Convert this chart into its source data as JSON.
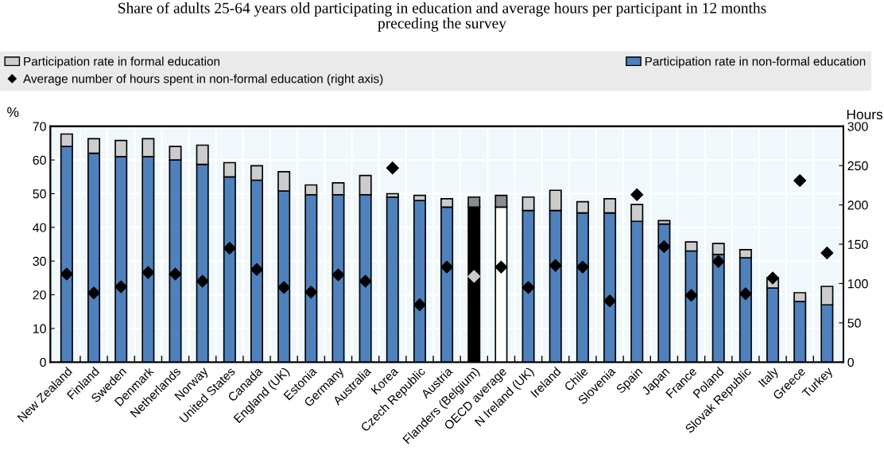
{
  "chart_data": {
    "type": "bar",
    "title": "Share of adults 25-64 years old participating in education and average hours per participant in 12 months\npreceding the survey",
    "ylabel": "%",
    "y2label": "Hours",
    "categories": [
      "New Zealand",
      "Finland",
      "Sweden",
      "Denmark",
      "Netherlands",
      "Norway",
      "United States",
      "Canada",
      "England (UK)",
      "Estonia",
      "Germany",
      "Australia",
      "Korea",
      "Czech Republic",
      "Austria",
      "Flanders (Belgium)",
      "OECD average",
      "N Ireland (UK)",
      "Ireland",
      "Chile",
      "Slovenia",
      "Spain",
      "Japan",
      "France",
      "Poland",
      "Slovak Republic",
      "Italy",
      "Greece",
      "Turkey"
    ],
    "stacked": true,
    "series": [
      {
        "name": "Participation rate in non-formal education",
        "color": "#4f81bd",
        "colors": [
          "#4f81bd",
          "#4f81bd",
          "#4f81bd",
          "#4f81bd",
          "#4f81bd",
          "#4f81bd",
          "#4f81bd",
          "#4f81bd",
          "#4f81bd",
          "#4f81bd",
          "#4f81bd",
          "#4f81bd",
          "#4f81bd",
          "#4f81bd",
          "#4f81bd",
          "#000000",
          "#ffffff",
          "#4f81bd",
          "#4f81bd",
          "#4f81bd",
          "#4f81bd",
          "#4f81bd",
          "#4f81bd",
          "#4f81bd",
          "#4f81bd",
          "#4f81bd",
          "#4f81bd",
          "#4f81bd",
          "#4f81bd"
        ],
        "values": [
          64,
          62,
          61,
          61,
          60,
          58.7,
          55,
          54,
          50.8,
          49.7,
          49.7,
          49.7,
          49,
          48,
          46,
          46,
          46,
          45,
          45,
          44.3,
          44.3,
          41.8,
          41,
          33,
          32,
          31,
          22,
          18,
          17
        ]
      },
      {
        "name": "Participation rate in formal education",
        "color": "#cccccc",
        "colors": [
          "#cccccc",
          "#cccccc",
          "#cccccc",
          "#cccccc",
          "#cccccc",
          "#cccccc",
          "#cccccc",
          "#cccccc",
          "#cccccc",
          "#cccccc",
          "#cccccc",
          "#cccccc",
          "#cccccc",
          "#cccccc",
          "#cccccc",
          "#8c8c8c",
          "#8c8c8c",
          "#cccccc",
          "#cccccc",
          "#cccccc",
          "#cccccc",
          "#cccccc",
          "#cccccc",
          "#cccccc",
          "#cccccc",
          "#cccccc",
          "#cccccc",
          "#cccccc",
          "#cccccc"
        ],
        "values": [
          3.7,
          4.3,
          4.8,
          5.3,
          4,
          5.7,
          4.2,
          4.3,
          5.7,
          2.9,
          3.5,
          5.7,
          1,
          1.5,
          2.5,
          3,
          3.5,
          4,
          6,
          3.3,
          4.2,
          5,
          1,
          2.7,
          3.2,
          2.4,
          3,
          2.6,
          5.5
        ]
      },
      {
        "type": "scatter",
        "axis": "y2",
        "marker": "diamond",
        "name": "Average number of hours spent in non-formal education (right axis)",
        "color": "#000000",
        "colors": [
          "#000000",
          "#000000",
          "#000000",
          "#000000",
          "#000000",
          "#000000",
          "#000000",
          "#000000",
          "#000000",
          "#000000",
          "#000000",
          "#000000",
          "#000000",
          "#000000",
          "#000000",
          "#cccccc",
          "#000000",
          "#000000",
          "#000000",
          "#000000",
          "#000000",
          "#000000",
          "#000000",
          "#000000",
          "#000000",
          "#000000",
          "#000000",
          "#000000",
          "#000000"
        ],
        "values": [
          112,
          88,
          96,
          114,
          112,
          103,
          145,
          118,
          95,
          89,
          111,
          103,
          247,
          73,
          121,
          109,
          121,
          95,
          123,
          121,
          78,
          213,
          147,
          85,
          128,
          87,
          107,
          231,
          139
        ]
      }
    ],
    "ylim": [
      0,
      70
    ],
    "yticks": [
      0,
      10,
      20,
      30,
      40,
      50,
      60,
      70
    ],
    "y2lim": [
      0,
      300
    ],
    "y2ticks": [
      0,
      50,
      100,
      150,
      200,
      250,
      300
    ],
    "grid": true,
    "legend": "top"
  }
}
